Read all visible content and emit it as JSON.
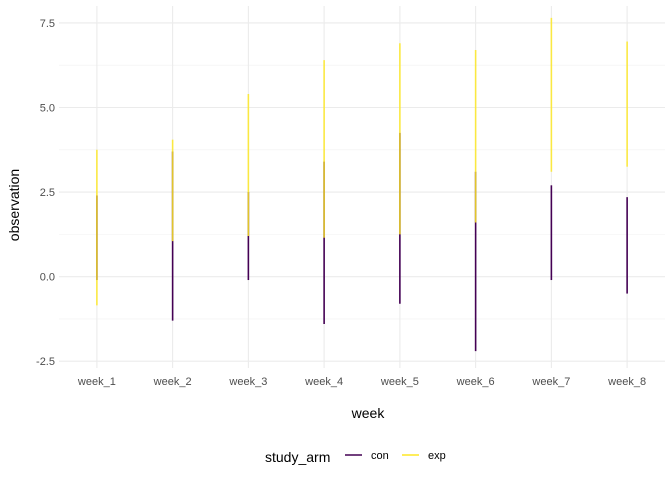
{
  "chart_data": {
    "type": "range",
    "title": "",
    "xlabel": "week",
    "ylabel": "observation",
    "categories": [
      "week_1",
      "week_2",
      "week_3",
      "week_4",
      "week_5",
      "week_6",
      "week_7",
      "week_8"
    ],
    "ylim": [
      -2.7,
      8.0
    ],
    "yticks": [
      -2.5,
      0.0,
      2.5,
      5.0,
      7.5
    ],
    "ytick_labels": [
      "-2.5",
      "0.0",
      "2.5",
      "5.0",
      "7.5"
    ],
    "grid": true,
    "legend": {
      "title": "study_arm",
      "position": "bottom"
    },
    "series": [
      {
        "name": "con",
        "color": "#440154",
        "ranges": [
          [
            -0.1,
            2.4
          ],
          [
            -1.3,
            3.7
          ],
          [
            -0.1,
            2.5
          ],
          [
            -1.4,
            3.4
          ],
          [
            -0.8,
            4.25
          ],
          [
            -2.2,
            3.1
          ],
          [
            -0.1,
            2.7
          ],
          [
            -0.5,
            2.35
          ]
        ]
      },
      {
        "name": "exp",
        "color": "#FDE725",
        "ranges": [
          [
            -0.85,
            3.75
          ],
          [
            1.05,
            4.05
          ],
          [
            1.2,
            5.4
          ],
          [
            1.15,
            6.4
          ],
          [
            1.25,
            6.9
          ],
          [
            1.6,
            6.7
          ],
          [
            3.1,
            7.65
          ],
          [
            3.25,
            6.95
          ]
        ]
      }
    ]
  }
}
